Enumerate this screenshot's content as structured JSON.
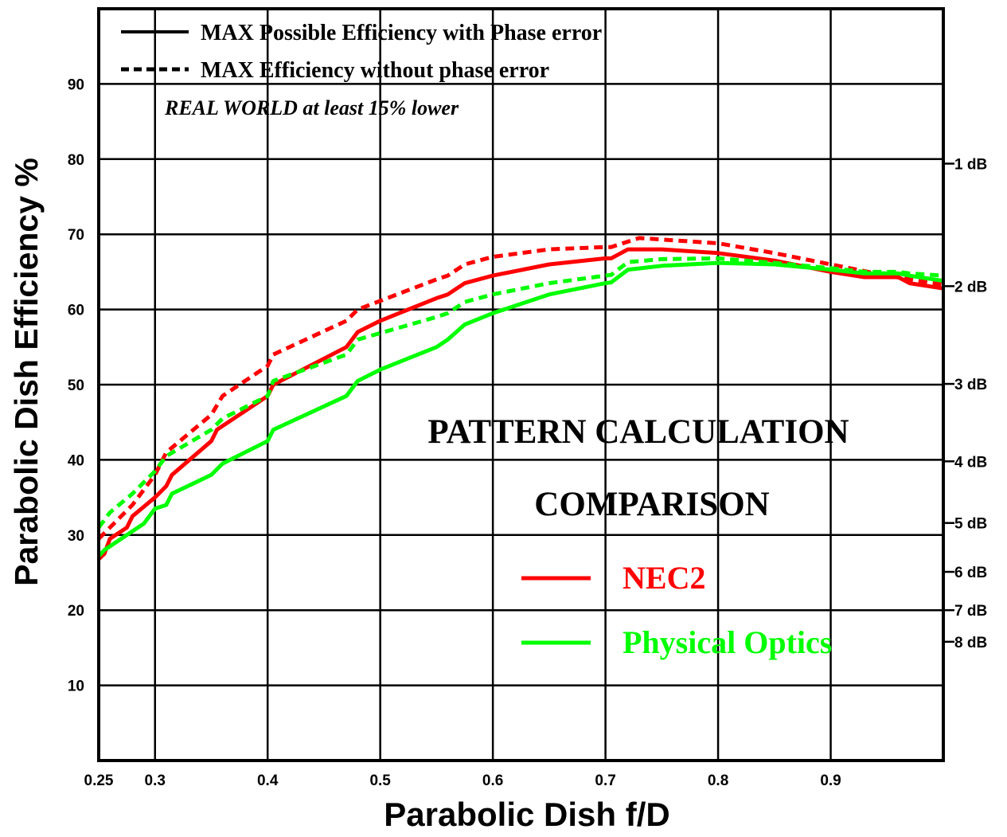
{
  "chart_data": {
    "type": "line",
    "xlabel": "Parabolic Dish f/D",
    "ylabel": "Parabolic Dish Efficiency %",
    "xlim": [
      0.25,
      1.0
    ],
    "ylim": [
      0,
      100
    ],
    "x_ticks": [
      {
        "value": 0.25,
        "label": "0.25"
      },
      {
        "value": 0.3,
        "label": "0.3"
      },
      {
        "value": 0.4,
        "label": "0.4"
      },
      {
        "value": 0.5,
        "label": "0.5"
      },
      {
        "value": 0.6,
        "label": "0.6"
      },
      {
        "value": 0.7,
        "label": "0.7"
      },
      {
        "value": 0.8,
        "label": "0.8"
      },
      {
        "value": 0.9,
        "label": "0.9"
      }
    ],
    "y_ticks": [
      {
        "value": 10,
        "label": "10"
      },
      {
        "value": 20,
        "label": "20"
      },
      {
        "value": 30,
        "label": "30"
      },
      {
        "value": 40,
        "label": "40"
      },
      {
        "value": 50,
        "label": "50"
      },
      {
        "value": 60,
        "label": "60"
      },
      {
        "value": 70,
        "label": "70"
      },
      {
        "value": 80,
        "label": "80"
      },
      {
        "value": 90,
        "label": "90"
      }
    ],
    "right_ticks": [
      {
        "value": 79.4,
        "label": "1 dB"
      },
      {
        "value": 63.1,
        "label": "2 dB"
      },
      {
        "value": 50.1,
        "label": "3 dB"
      },
      {
        "value": 39.8,
        "label": "4 dB"
      },
      {
        "value": 31.6,
        "label": "5 dB"
      },
      {
        "value": 25.1,
        "label": "6 dB"
      },
      {
        "value": 20.0,
        "label": "7 dB"
      },
      {
        "value": 15.8,
        "label": "8 dB"
      }
    ],
    "grid": true,
    "legend_style": {
      "solid_label": "MAX Possible Efficiency with Phase error",
      "dashed_label": "MAX Efficiency without phase error",
      "note": "REAL WORLD at least 15% lower"
    },
    "annotation": {
      "line1": "PATTERN CALCULATION",
      "line2": "COMPARISON"
    },
    "method_legend": [
      {
        "label": "NEC2",
        "color": "#ff0000"
      },
      {
        "label": "Physical Optics",
        "color": "#00ff00"
      }
    ],
    "series": [
      {
        "method": "NEC2",
        "style": "solid",
        "color": "#ff0000",
        "points": [
          [
            0.25,
            26.8
          ],
          [
            0.255,
            27.5
          ],
          [
            0.26,
            29.5
          ],
          [
            0.275,
            31
          ],
          [
            0.28,
            32.5
          ],
          [
            0.3,
            35
          ],
          [
            0.31,
            36.5
          ],
          [
            0.315,
            38
          ],
          [
            0.35,
            42.5
          ],
          [
            0.355,
            44
          ],
          [
            0.4,
            48.5
          ],
          [
            0.405,
            50
          ],
          [
            0.47,
            55
          ],
          [
            0.48,
            57
          ],
          [
            0.5,
            58.5
          ],
          [
            0.55,
            61.5
          ],
          [
            0.56,
            62
          ],
          [
            0.575,
            63.5
          ],
          [
            0.6,
            64.5
          ],
          [
            0.65,
            66
          ],
          [
            0.7,
            66.8
          ],
          [
            0.705,
            66.8
          ],
          [
            0.72,
            68
          ],
          [
            0.75,
            68
          ],
          [
            0.8,
            67.5
          ],
          [
            0.85,
            66.5
          ],
          [
            0.9,
            65
          ],
          [
            0.93,
            64.3
          ],
          [
            0.96,
            64.3
          ],
          [
            0.97,
            63.5
          ],
          [
            1.0,
            62.8
          ]
        ]
      },
      {
        "method": "NEC2",
        "style": "dashed",
        "color": "#ff0000",
        "points": [
          [
            0.25,
            29.5
          ],
          [
            0.26,
            31
          ],
          [
            0.28,
            34
          ],
          [
            0.3,
            38
          ],
          [
            0.31,
            41
          ],
          [
            0.35,
            46
          ],
          [
            0.36,
            48.5
          ],
          [
            0.4,
            52.5
          ],
          [
            0.405,
            54
          ],
          [
            0.47,
            58.5
          ],
          [
            0.48,
            60
          ],
          [
            0.55,
            64
          ],
          [
            0.56,
            64.5
          ],
          [
            0.575,
            66
          ],
          [
            0.6,
            67
          ],
          [
            0.65,
            68
          ],
          [
            0.7,
            68.3
          ],
          [
            0.705,
            68.3
          ],
          [
            0.73,
            69.5
          ],
          [
            0.75,
            69.3
          ],
          [
            0.8,
            68.8
          ],
          [
            0.85,
            67.5
          ],
          [
            0.9,
            66
          ],
          [
            0.95,
            64.5
          ],
          [
            1.0,
            63.3
          ]
        ]
      },
      {
        "method": "Physical Optics",
        "style": "solid",
        "color": "#00ff00",
        "points": [
          [
            0.25,
            27.2
          ],
          [
            0.255,
            28
          ],
          [
            0.26,
            28.5
          ],
          [
            0.28,
            30.5
          ],
          [
            0.29,
            31.5
          ],
          [
            0.3,
            33.5
          ],
          [
            0.31,
            34
          ],
          [
            0.315,
            35.5
          ],
          [
            0.35,
            38
          ],
          [
            0.36,
            39.5
          ],
          [
            0.4,
            42.5
          ],
          [
            0.405,
            44
          ],
          [
            0.47,
            48.5
          ],
          [
            0.48,
            50.5
          ],
          [
            0.5,
            52
          ],
          [
            0.55,
            55
          ],
          [
            0.56,
            56
          ],
          [
            0.575,
            58
          ],
          [
            0.6,
            59.5
          ],
          [
            0.62,
            60.5
          ],
          [
            0.65,
            62
          ],
          [
            0.7,
            63.5
          ],
          [
            0.705,
            63.6
          ],
          [
            0.72,
            65.3
          ],
          [
            0.75,
            65.8
          ],
          [
            0.8,
            66.2
          ],
          [
            0.85,
            66
          ],
          [
            0.9,
            65.3
          ],
          [
            0.93,
            64.8
          ],
          [
            0.96,
            64.8
          ],
          [
            0.97,
            64.5
          ],
          [
            1.0,
            63.8
          ]
        ]
      },
      {
        "method": "Physical Optics",
        "style": "dashed",
        "color": "#00ff00",
        "points": [
          [
            0.25,
            31
          ],
          [
            0.26,
            33
          ],
          [
            0.28,
            35.5
          ],
          [
            0.29,
            37
          ],
          [
            0.3,
            38.5
          ],
          [
            0.31,
            40.5
          ],
          [
            0.35,
            44
          ],
          [
            0.36,
            45.5
          ],
          [
            0.4,
            48.5
          ],
          [
            0.405,
            50.5
          ],
          [
            0.47,
            54
          ],
          [
            0.48,
            56
          ],
          [
            0.55,
            59
          ],
          [
            0.56,
            59.5
          ],
          [
            0.575,
            61
          ],
          [
            0.6,
            62
          ],
          [
            0.65,
            63.5
          ],
          [
            0.7,
            64.5
          ],
          [
            0.705,
            64.6
          ],
          [
            0.72,
            66.3
          ],
          [
            0.75,
            66.7
          ],
          [
            0.8,
            66.8
          ],
          [
            0.85,
            66.2
          ],
          [
            0.9,
            65.5
          ],
          [
            0.93,
            65
          ],
          [
            0.96,
            65
          ],
          [
            0.97,
            64.8
          ],
          [
            1.0,
            64.5
          ]
        ]
      }
    ]
  }
}
